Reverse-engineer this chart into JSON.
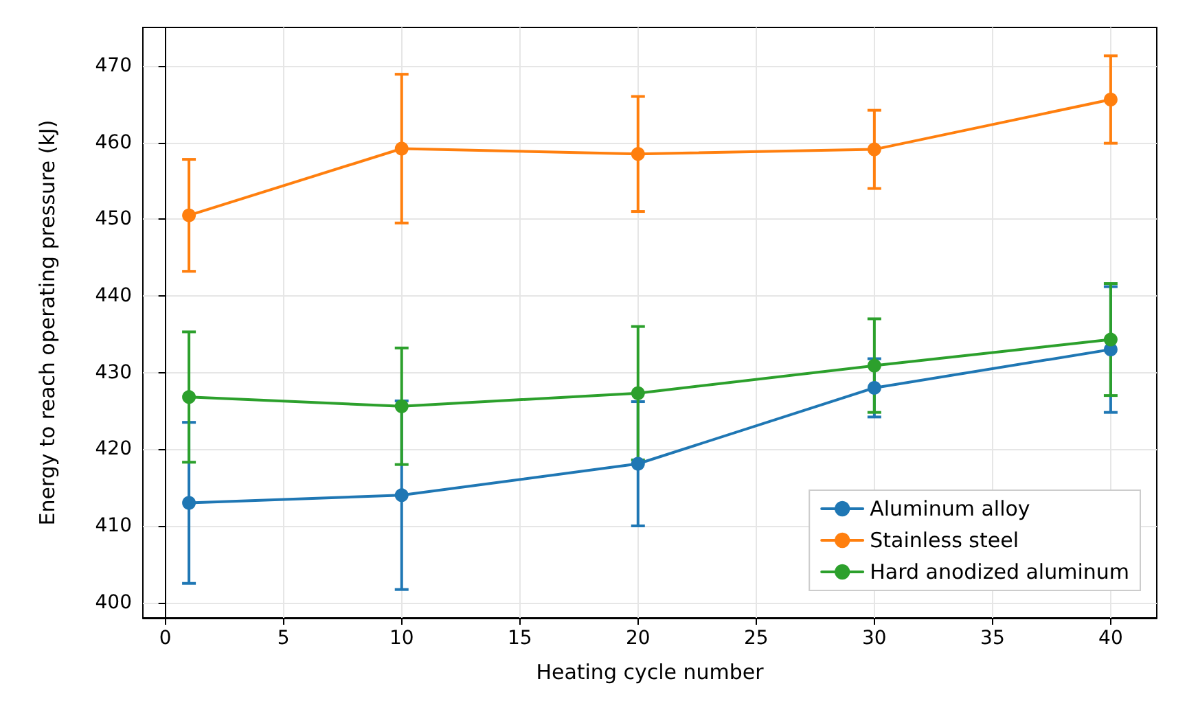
{
  "chart_data": {
    "type": "line",
    "xlabel": "Heating cycle number",
    "ylabel": "Energy to reach operating pressure (kJ)",
    "x": [
      1,
      10,
      20,
      30,
      40
    ],
    "series": [
      {
        "name": "Aluminum alloy",
        "color": "#1f77b4",
        "values": [
          413,
          414,
          418.1,
          428,
          433
        ],
        "errors": [
          10.5,
          12.3,
          8.1,
          3.8,
          8.2
        ]
      },
      {
        "name": "Stainless steel",
        "color": "#ff7f0e",
        "values": [
          450.5,
          459.2,
          458.5,
          459.1,
          465.6
        ],
        "errors": [
          7.3,
          9.7,
          7.5,
          5.1,
          5.7
        ]
      },
      {
        "name": "Hard anodized aluminum",
        "color": "#2ca02c",
        "values": [
          426.8,
          425.6,
          427.3,
          430.9,
          434.3
        ],
        "errors": [
          8.5,
          7.6,
          8.7,
          6.1,
          7.3
        ]
      }
    ],
    "xlim": [
      -0.95,
      41.95
    ],
    "xticks": [
      0,
      5,
      10,
      15,
      20,
      25,
      30,
      35,
      40
    ],
    "ylim": [
      398,
      475
    ],
    "yticks": [
      400,
      410,
      420,
      430,
      440,
      450,
      460,
      470
    ],
    "grid": true,
    "legend": "bottom right",
    "marker": "circle",
    "line_style": "solid"
  }
}
